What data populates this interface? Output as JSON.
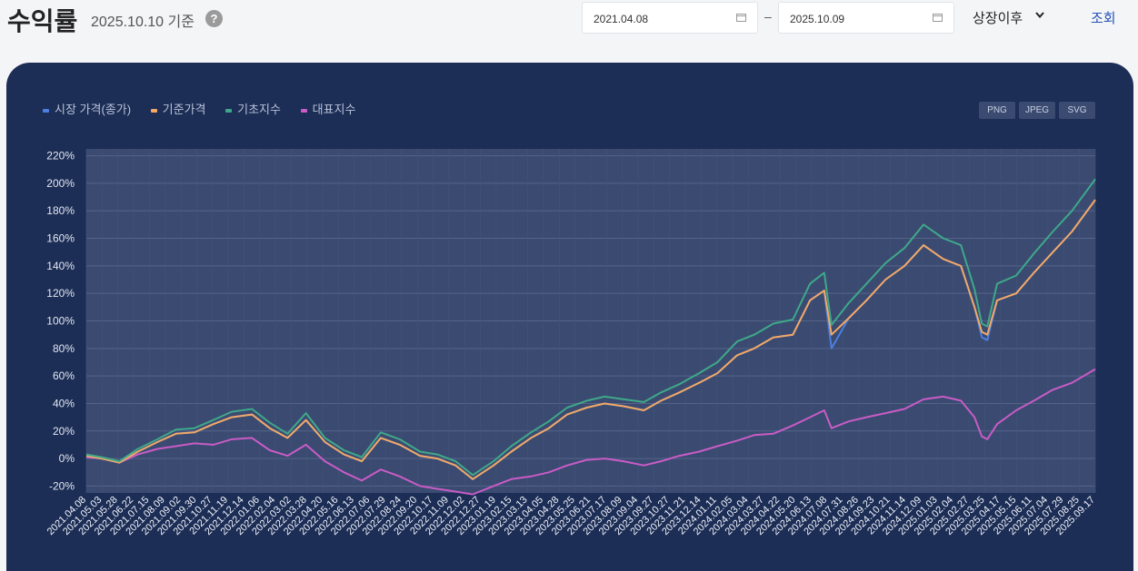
{
  "header": {
    "title": "수익률",
    "subtitle": "2025.10.10 기준",
    "help_label": "?",
    "date_from": "2021.04.08",
    "date_to": "2025.10.09",
    "separator": "–",
    "period_select": "상장이후",
    "search_button": "조회"
  },
  "export_buttons": [
    "PNG",
    "JPEG",
    "SVG"
  ],
  "chart_data": {
    "type": "line",
    "ylim": [
      -25,
      225
    ],
    "y_ticks": [
      -20,
      0,
      20,
      40,
      60,
      80,
      100,
      120,
      140,
      160,
      180,
      200,
      220
    ],
    "y_tick_labels": [
      "-20%",
      "0%",
      "20%",
      "40%",
      "60%",
      "80%",
      "100%",
      "120%",
      "140%",
      "160%",
      "180%",
      "200%",
      "220%"
    ],
    "x_start": "2021-04-08",
    "x_end": "2025-10-09",
    "x_tick_labels": [
      "2021.04.08",
      "2021.05.03",
      "2021.05.28",
      "2021.06.22",
      "2021.07.15",
      "2021.08.09",
      "2021.09.02",
      "2021.09.30",
      "2021.10.27",
      "2021.11.19",
      "2021.12.14",
      "2022.01.06",
      "2022.02.04",
      "2022.03.02",
      "2022.03.28",
      "2022.04.20",
      "2022.05.16",
      "2022.06.13",
      "2022.07.06",
      "2022.07.29",
      "2022.08.24",
      "2022.09.20",
      "2022.10.17",
      "2022.11.09",
      "2022.12.02",
      "2022.12.27",
      "2023.01.19",
      "2023.02.15",
      "2023.03.13",
      "2023.04.05",
      "2023.04.28",
      "2023.05.25",
      "2023.06.21",
      "2023.07.17",
      "2023.08.09",
      "2023.09.04",
      "2023.09.27",
      "2023.10.27",
      "2023.11.21",
      "2023.12.14",
      "2024.01.11",
      "2024.02.05",
      "2024.03.04",
      "2024.03.27",
      "2024.04.22",
      "2024.05.20",
      "2024.06.13",
      "2024.07.08",
      "2024.07.31",
      "2024.08.26",
      "2024.09.23",
      "2024.10.21",
      "2024.11.14",
      "2024.12.09",
      "2025.01.03",
      "2025.02.04",
      "2025.02.27",
      "2025.03.25",
      "2025.04.17",
      "2025.05.15",
      "2025.06.11",
      "2025.07.04",
      "2025.07.29",
      "2025.08.25",
      "2025.09.17"
    ],
    "series": [
      {
        "name": "시장 가격(종가)",
        "color": "#4c7fe0",
        "x": [
          "2021-04-08",
          "2021-05-03",
          "2021-06-01",
          "2021-07-01",
          "2021-08-02",
          "2021-09-01",
          "2021-10-01",
          "2021-11-01",
          "2021-12-01",
          "2022-01-03",
          "2022-02-01",
          "2022-03-02",
          "2022-04-01",
          "2022-05-02",
          "2022-06-02",
          "2022-07-01",
          "2022-08-01",
          "2022-09-01",
          "2022-10-04",
          "2022-11-01",
          "2022-12-01",
          "2022-12-29",
          "2023-02-01",
          "2023-03-02",
          "2023-04-03",
          "2023-05-02",
          "2023-06-01",
          "2023-07-03",
          "2023-08-01",
          "2023-09-01",
          "2023-10-04",
          "2023-11-01",
          "2023-12-01",
          "2024-01-02",
          "2024-02-01",
          "2024-03-04",
          "2024-04-01",
          "2024-05-02",
          "2024-06-03",
          "2024-07-01",
          "2024-07-24",
          "2024-08-05",
          "2024-09-02",
          "2024-10-01",
          "2024-11-01",
          "2024-12-02",
          "2025-01-02",
          "2025-02-03",
          "2025-03-04",
          "2025-03-26",
          "2025-04-07",
          "2025-04-16",
          "2025-05-02",
          "2025-06-02",
          "2025-07-01",
          "2025-08-01",
          "2025-09-01",
          "2025-10-09"
        ],
        "values": [
          2,
          0,
          -3,
          5,
          12,
          18,
          19,
          25,
          30,
          32,
          22,
          15,
          28,
          12,
          3,
          -2,
          15,
          10,
          2,
          0,
          -5,
          -15,
          -5,
          5,
          15,
          22,
          32,
          37,
          40,
          38,
          35,
          42,
          48,
          55,
          62,
          75,
          80,
          88,
          90,
          115,
          122,
          80,
          102,
          115,
          130,
          140,
          155,
          145,
          140,
          110,
          88,
          86,
          115,
          120,
          135,
          150,
          165,
          188
        ]
      },
      {
        "name": "기준가격",
        "color": "#f3a865",
        "x": [
          "2021-04-08",
          "2021-05-03",
          "2021-06-01",
          "2021-07-01",
          "2021-08-02",
          "2021-09-01",
          "2021-10-01",
          "2021-11-01",
          "2021-12-01",
          "2022-01-03",
          "2022-02-01",
          "2022-03-02",
          "2022-04-01",
          "2022-05-02",
          "2022-06-02",
          "2022-07-01",
          "2022-08-01",
          "2022-09-01",
          "2022-10-04",
          "2022-11-01",
          "2022-12-01",
          "2022-12-29",
          "2023-02-01",
          "2023-03-02",
          "2023-04-03",
          "2023-05-02",
          "2023-06-01",
          "2023-07-03",
          "2023-08-01",
          "2023-09-01",
          "2023-10-04",
          "2023-11-01",
          "2023-12-01",
          "2024-01-02",
          "2024-02-01",
          "2024-03-04",
          "2024-04-01",
          "2024-05-02",
          "2024-06-03",
          "2024-07-01",
          "2024-07-24",
          "2024-08-05",
          "2024-09-02",
          "2024-10-01",
          "2024-11-01",
          "2024-12-02",
          "2025-01-02",
          "2025-02-03",
          "2025-03-04",
          "2025-03-26",
          "2025-04-07",
          "2025-04-16",
          "2025-05-02",
          "2025-06-02",
          "2025-07-01",
          "2025-08-01",
          "2025-09-01",
          "2025-10-09"
        ],
        "values": [
          2,
          0,
          -3,
          5,
          12,
          18,
          19,
          25,
          30,
          32,
          22,
          15,
          28,
          12,
          3,
          -2,
          15,
          10,
          2,
          0,
          -5,
          -15,
          -5,
          5,
          15,
          22,
          32,
          37,
          40,
          38,
          35,
          42,
          48,
          55,
          62,
          75,
          80,
          88,
          90,
          115,
          122,
          90,
          102,
          115,
          130,
          140,
          155,
          145,
          140,
          110,
          92,
          90,
          115,
          120,
          135,
          150,
          165,
          188
        ]
      },
      {
        "name": "기초지수",
        "color": "#3fa88a",
        "x": [
          "2021-04-08",
          "2021-05-03",
          "2021-06-01",
          "2021-07-01",
          "2021-08-02",
          "2021-09-01",
          "2021-10-01",
          "2021-11-01",
          "2021-12-01",
          "2022-01-03",
          "2022-02-01",
          "2022-03-02",
          "2022-04-01",
          "2022-05-02",
          "2022-06-02",
          "2022-07-01",
          "2022-08-01",
          "2022-09-01",
          "2022-10-04",
          "2022-11-01",
          "2022-12-01",
          "2022-12-29",
          "2023-02-01",
          "2023-03-02",
          "2023-04-03",
          "2023-05-02",
          "2023-06-01",
          "2023-07-03",
          "2023-08-01",
          "2023-09-01",
          "2023-10-04",
          "2023-11-01",
          "2023-12-01",
          "2024-01-02",
          "2024-02-01",
          "2024-03-04",
          "2024-04-01",
          "2024-05-02",
          "2024-06-03",
          "2024-07-01",
          "2024-07-24",
          "2024-08-05",
          "2024-09-02",
          "2024-10-01",
          "2024-11-01",
          "2024-12-02",
          "2025-01-02",
          "2025-02-03",
          "2025-03-04",
          "2025-03-26",
          "2025-04-07",
          "2025-04-16",
          "2025-05-02",
          "2025-06-02",
          "2025-07-01",
          "2025-08-01",
          "2025-09-01",
          "2025-10-09"
        ],
        "values": [
          3,
          1,
          -2,
          7,
          14,
          21,
          22,
          28,
          34,
          36,
          26,
          18,
          33,
          15,
          6,
          1,
          19,
          14,
          5,
          3,
          -2,
          -12,
          -2,
          9,
          19,
          27,
          37,
          42,
          45,
          43,
          41,
          48,
          54,
          62,
          70,
          85,
          90,
          98,
          101,
          127,
          135,
          97,
          113,
          127,
          142,
          153,
          170,
          160,
          155,
          123,
          98,
          96,
          127,
          133,
          149,
          165,
          180,
          203
        ]
      },
      {
        "name": "대표지수",
        "color": "#c95cc6",
        "x": [
          "2021-04-08",
          "2021-05-03",
          "2021-06-01",
          "2021-07-01",
          "2021-08-02",
          "2021-09-01",
          "2021-10-01",
          "2021-11-01",
          "2021-12-01",
          "2022-01-03",
          "2022-02-01",
          "2022-03-02",
          "2022-04-01",
          "2022-05-02",
          "2022-06-02",
          "2022-07-01",
          "2022-08-01",
          "2022-09-01",
          "2022-10-04",
          "2022-11-01",
          "2022-12-01",
          "2022-12-29",
          "2023-02-01",
          "2023-03-02",
          "2023-04-03",
          "2023-05-02",
          "2023-06-01",
          "2023-07-03",
          "2023-08-01",
          "2023-09-01",
          "2023-10-04",
          "2023-11-01",
          "2023-12-01",
          "2024-01-02",
          "2024-02-01",
          "2024-03-04",
          "2024-04-01",
          "2024-05-02",
          "2024-06-03",
          "2024-07-01",
          "2024-07-24",
          "2024-08-05",
          "2024-09-02",
          "2024-10-01",
          "2024-11-01",
          "2024-12-02",
          "2025-01-02",
          "2025-02-03",
          "2025-03-04",
          "2025-03-26",
          "2025-04-07",
          "2025-04-16",
          "2025-05-02",
          "2025-06-02",
          "2025-07-01",
          "2025-08-01",
          "2025-09-01",
          "2025-10-09"
        ],
        "values": [
          1,
          0,
          -3,
          3,
          7,
          9,
          11,
          10,
          14,
          15,
          6,
          2,
          10,
          -2,
          -10,
          -16,
          -8,
          -13,
          -20,
          -22,
          -24,
          -26,
          -20,
          -15,
          -13,
          -10,
          -5,
          -1,
          0,
          -2,
          -5,
          -2,
          2,
          5,
          9,
          13,
          17,
          18,
          24,
          30,
          35,
          22,
          27,
          30,
          33,
          36,
          43,
          45,
          42,
          30,
          16,
          14,
          25,
          35,
          42,
          50,
          55,
          65
        ]
      }
    ]
  }
}
